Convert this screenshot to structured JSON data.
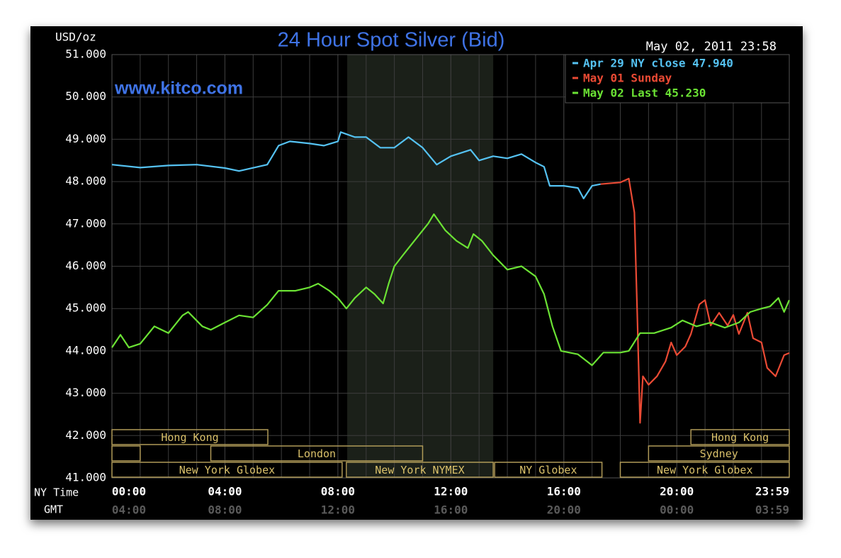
{
  "chart_data": {
    "type": "line",
    "title": "24 Hour Spot Silver (Bid)",
    "y_label": "USD/oz",
    "timestamp": "May 02, 2011 23:58",
    "watermark": "www.kitco.com",
    "x_label": "NY Time",
    "x2_label": "GMT",
    "x2_tick_labels": [
      "04:00",
      "08:00",
      "12:00",
      "16:00",
      "20:00",
      "00:00",
      "03:59"
    ],
    "xlim": [
      0,
      23.983
    ],
    "xticks": [
      {
        "value": 0,
        "label": "00:00"
      },
      {
        "value": 4,
        "label": "04:00"
      },
      {
        "value": 8,
        "label": "08:00"
      },
      {
        "value": 12,
        "label": "12:00"
      },
      {
        "value": 16,
        "label": "16:00"
      },
      {
        "value": 20,
        "label": "20:00"
      },
      {
        "value": 23.983,
        "label": "23:59"
      }
    ],
    "ylim": [
      41,
      51
    ],
    "yticks": [
      {
        "value": 41,
        "label": "41.000"
      },
      {
        "value": 42,
        "label": "42.000"
      },
      {
        "value": 43,
        "label": "43.000"
      },
      {
        "value": 44,
        "label": "44.000"
      },
      {
        "value": 45,
        "label": "45.000"
      },
      {
        "value": 46,
        "label": "46.000"
      },
      {
        "value": 47,
        "label": "47.000"
      },
      {
        "value": 48,
        "label": "48.000"
      },
      {
        "value": 49,
        "label": "49.000"
      },
      {
        "value": 50,
        "label": "50.000"
      },
      {
        "value": 51,
        "label": "51.000"
      }
    ],
    "grid": true,
    "legend": "top-right",
    "highlight_x": [
      8.33,
      13.5
    ],
    "sessions": [
      [
        {
          "label": "Hong Kong",
          "start": 0,
          "end": 5.52
        },
        {
          "label": "Hong Kong",
          "start": 20.5,
          "end": 23.983
        }
      ],
      [
        {
          "start": 0,
          "end": 1
        },
        {
          "label": "London",
          "start": 3.5,
          "end": 11
        },
        {
          "label": "Sydney",
          "start": 19,
          "end": 23.983
        }
      ],
      [
        {
          "label": "New York Globex",
          "start": 0,
          "end": 8.15
        },
        {
          "label": "New York NYMEX",
          "start": 8.3,
          "end": 13.5
        },
        {
          "label": "NY Globex",
          "start": 13.55,
          "end": 17.35
        },
        {
          "label": "New York Globex",
          "start": 18,
          "end": 23.983
        }
      ]
    ],
    "series": [
      {
        "name": "Apr 29 NY close 47.940",
        "color": "#55c2f2",
        "x": [
          0,
          1,
          2,
          3,
          4,
          4.5,
          5.5,
          5.9,
          6.3,
          7,
          7.5,
          8,
          8.1,
          8.6,
          9,
          9.5,
          10,
          10.5,
          11,
          11.5,
          12,
          12.7,
          13,
          13.5,
          14,
          14.5,
          15,
          15.3,
          15.5,
          16,
          16.5,
          16.7,
          17,
          17.3
        ],
        "values": [
          48.4,
          48.33,
          48.38,
          48.4,
          48.32,
          48.25,
          48.4,
          48.85,
          48.95,
          48.9,
          48.85,
          48.95,
          49.17,
          49.05,
          49.05,
          48.8,
          48.8,
          49.05,
          48.8,
          48.4,
          48.6,
          48.75,
          48.5,
          48.6,
          48.55,
          48.65,
          48.45,
          48.35,
          47.9,
          47.9,
          47.85,
          47.6,
          47.9,
          47.94
        ]
      },
      {
        "name": "May 01 Sunday",
        "color": "#ea4a34",
        "x": [
          17.3,
          18,
          18.3,
          18.5,
          18.6,
          18.7,
          18.8,
          19,
          19.3,
          19.6,
          19.8,
          20,
          20.3,
          20.5,
          20.8,
          21,
          21.2,
          21.5,
          21.8,
          22,
          22.2,
          22.5,
          22.7,
          23,
          23.2,
          23.5,
          23.8,
          23.98
        ],
        "values": [
          47.94,
          47.98,
          48.07,
          47.27,
          44.9,
          42.3,
          43.4,
          43.2,
          43.4,
          43.75,
          44.2,
          43.9,
          44.1,
          44.4,
          45.1,
          45.2,
          44.6,
          44.9,
          44.6,
          44.85,
          44.4,
          44.9,
          44.3,
          44.2,
          43.6,
          43.4,
          43.9,
          43.95
        ]
      },
      {
        "name": "May 02 Last 45.230",
        "color": "#6be234",
        "x": [
          0,
          0.3,
          0.6,
          1,
          1.5,
          2,
          2.5,
          2.7,
          3.2,
          3.5,
          4,
          4.5,
          5,
          5.5,
          5.9,
          6.5,
          7,
          7.3,
          7.7,
          8,
          8.3,
          8.6,
          9,
          9.3,
          9.6,
          9.8,
          10,
          10.3,
          10.6,
          10.9,
          11.2,
          11.4,
          11.8,
          12.2,
          12.6,
          12.8,
          13.1,
          13.5,
          14,
          14.5,
          15,
          15.3,
          15.6,
          15.9,
          16.5,
          17,
          17.4,
          18,
          18.3,
          18.7,
          19.2,
          19.8,
          20.2,
          20.7,
          21.2,
          21.7,
          22.2,
          22.6,
          23,
          23.3,
          23.6,
          23.8,
          23.98
        ],
        "values": [
          44.08,
          44.38,
          44.08,
          44.17,
          44.58,
          44.42,
          44.84,
          44.92,
          44.58,
          44.5,
          44.67,
          44.84,
          44.79,
          45.09,
          45.42,
          45.42,
          45.5,
          45.59,
          45.42,
          45.25,
          45.0,
          45.25,
          45.5,
          45.34,
          45.12,
          45.59,
          46.0,
          46.26,
          46.51,
          46.76,
          47.01,
          47.23,
          46.85,
          46.6,
          46.43,
          46.76,
          46.6,
          46.26,
          45.92,
          46.0,
          45.76,
          45.34,
          44.58,
          44.0,
          43.92,
          43.66,
          43.96,
          43.96,
          44.0,
          44.42,
          44.42,
          44.55,
          44.72,
          44.58,
          44.67,
          44.55,
          44.67,
          44.92,
          45.0,
          45.05,
          45.25,
          44.92,
          45.2
        ]
      }
    ]
  }
}
